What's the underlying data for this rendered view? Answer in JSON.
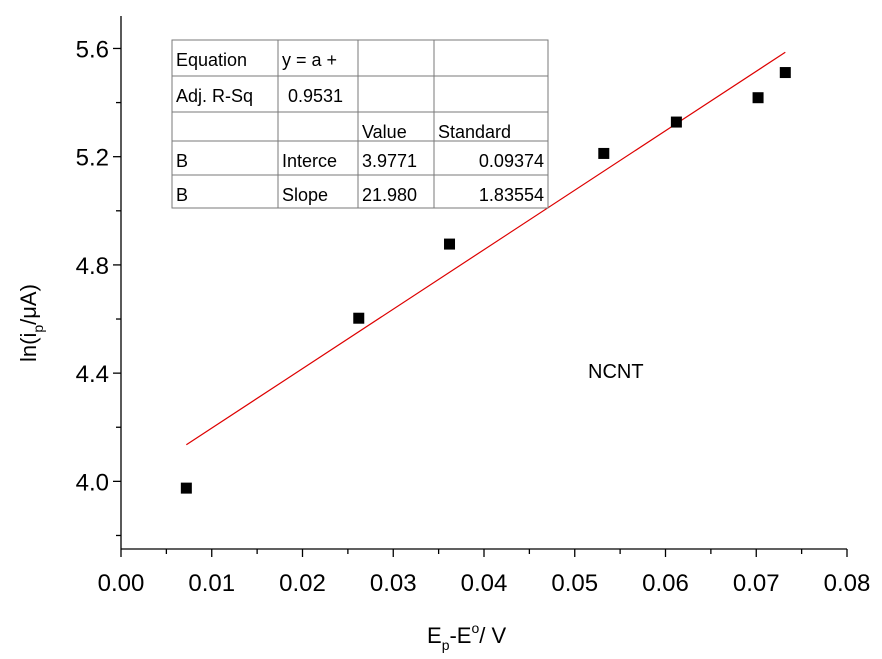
{
  "chart_data": {
    "type": "scatter",
    "title": "",
    "xlabel": {
      "main": "E",
      "sub": "p",
      "mid": "-E",
      "sup": "o",
      "tail": "/ V"
    },
    "ylabel": {
      "pre": "ln(i",
      "sub": "p",
      "post": "/μA)"
    },
    "xlim": [
      0.0,
      0.08
    ],
    "ylim": [
      3.75,
      5.72
    ],
    "x_ticks": [
      "0.00",
      "0.01",
      "0.02",
      "0.03",
      "0.04",
      "0.05",
      "0.06",
      "0.07",
      "0.08"
    ],
    "y_ticks": [
      "4.0",
      "4.4",
      "4.8",
      "5.2",
      "5.6"
    ],
    "grid": false,
    "series": [
      {
        "points": [
          {
            "x": 0.0072,
            "y": 3.975
          },
          {
            "x": 0.0262,
            "y": 4.603
          },
          {
            "x": 0.0362,
            "y": 4.877
          },
          {
            "x": 0.0532,
            "y": 5.212
          },
          {
            "x": 0.0612,
            "y": 5.328
          },
          {
            "x": 0.0702,
            "y": 5.418
          },
          {
            "x": 0.0732,
            "y": 5.511
          }
        ],
        "marker": "square",
        "color": "#000000"
      }
    ],
    "fit": {
      "intercept": 3.9771,
      "slope": 21.98,
      "x_range": [
        0.0072,
        0.0732
      ],
      "color": "#dd0000"
    },
    "annotation": "NCNT",
    "fit_table": {
      "rows": [
        [
          "Equation",
          "y = a +",
          "",
          ""
        ],
        [
          "Adj. R-Sq",
          "0.9531",
          "",
          ""
        ],
        [
          "",
          "",
          "Value",
          "Standard"
        ],
        [
          "B",
          "Interce",
          "3.9771",
          "0.09374"
        ],
        [
          "B",
          "Slope",
          "21.980",
          "1.83554"
        ]
      ]
    }
  }
}
